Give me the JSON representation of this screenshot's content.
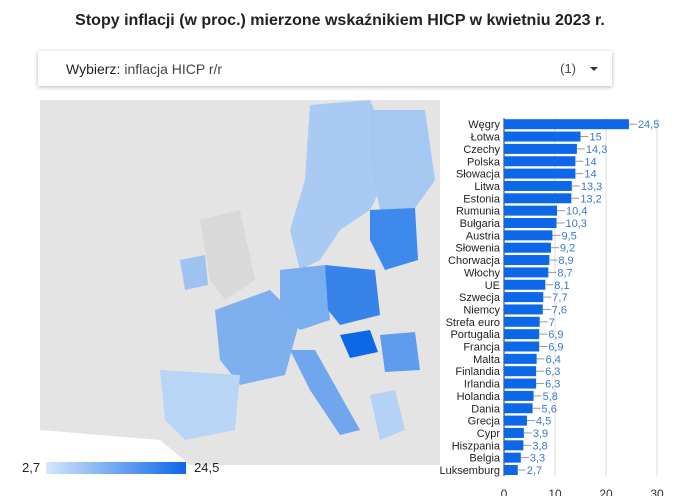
{
  "title": "Stopy inflacji (w proc.) mierzone wskaźnikiem HICP w kwietniu 2023 r.",
  "dropdown": {
    "label": "Wybierz",
    "value": "inflacja HICP r/r",
    "count": "(1)",
    "icon": "caret-down-icon"
  },
  "legend": {
    "min": "2,7",
    "max": "24,5",
    "color_low": "#d4e6fb",
    "color_high": "#0d68e8"
  },
  "chart_data": {
    "type": "bar",
    "orientation": "horizontal",
    "categories": [
      "Węgry",
      "Łotwa",
      "Czechy",
      "Polska",
      "Słowacja",
      "Litwa",
      "Estonia",
      "Rumunia",
      "Bułgaria",
      "Austria",
      "Słowenia",
      "Chorwacja",
      "Włochy",
      "UE",
      "Szwecja",
      "Niemcy",
      "Strefa euro",
      "Portugalia",
      "Francja",
      "Malta",
      "Finlandia",
      "Irlandia",
      "Holandia",
      "Dania",
      "Grecja",
      "Cypr",
      "Hiszpania",
      "Belgia",
      "Luksemburg"
    ],
    "values": [
      24.5,
      15,
      14.3,
      14,
      14,
      13.3,
      13.2,
      10.4,
      10.3,
      9.5,
      9.2,
      8.9,
      8.7,
      8.1,
      7.7,
      7.6,
      7,
      6.9,
      6.9,
      6.4,
      6.3,
      6.3,
      5.8,
      5.6,
      4.5,
      3.9,
      3.8,
      3.3,
      2.7
    ],
    "labels": [
      "24,5",
      "15",
      "14,3",
      "14",
      "14",
      "13,3",
      "13,2",
      "10,4",
      "10,3",
      "9,5",
      "9,2",
      "8,9",
      "8,7",
      "8,1",
      "7,7",
      "7,6",
      "7",
      "6,9",
      "6,9",
      "6,4",
      "6,3",
      "6,3",
      "5,8",
      "5,6",
      "4,5",
      "3,9",
      "3,8",
      "3,3",
      "2,7"
    ],
    "xticks": [
      "0",
      "10",
      "20",
      "30"
    ],
    "xlim": [
      0,
      30
    ],
    "bar_color": "#0d68e8",
    "label_color": "#3a78c9",
    "grid": true
  }
}
